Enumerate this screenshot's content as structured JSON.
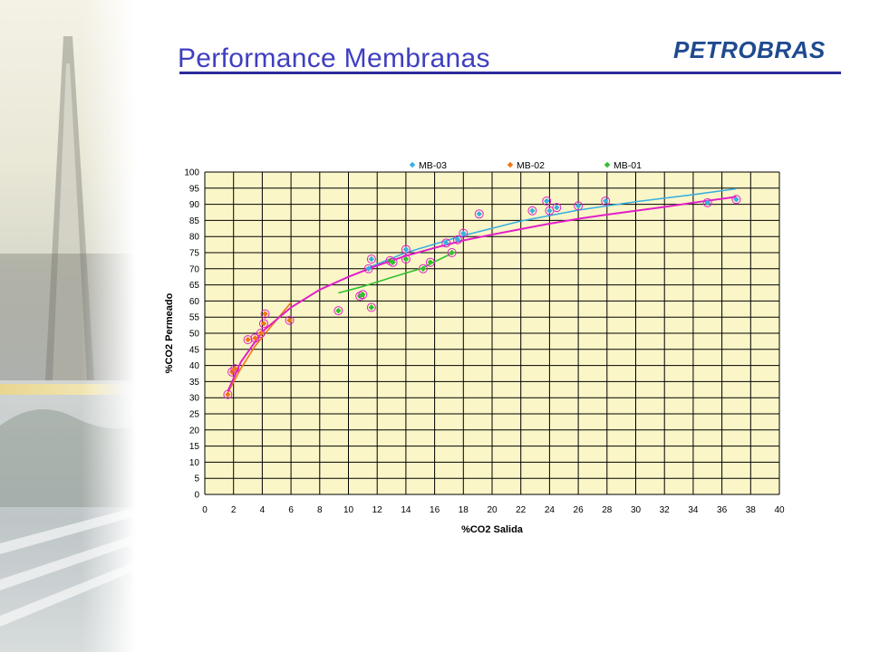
{
  "slide": {
    "title": "Performance Membranas",
    "logo": "PETROBRAS"
  },
  "colors": {
    "title": "#3f3fc0",
    "rule": "#2b2b9a",
    "logo": "#1f4a8f",
    "plot_background": "#fbf6c8",
    "grid": "#000000",
    "MB-03": "#3ab0e0",
    "MB-02": "#f07818",
    "MB-01": "#30c030",
    "fit_all": "#e020c8"
  },
  "chart_data": {
    "type": "scatter",
    "xlabel": "%CO2 Salida",
    "ylabel": "%CO2 Permeado",
    "xlim": [
      0,
      40
    ],
    "ylim": [
      0,
      100
    ],
    "xticks": [
      "0",
      "2",
      "4",
      "6",
      "8",
      "10",
      "12",
      "14",
      "16",
      "18",
      "20",
      "22",
      "24",
      "26",
      "28",
      "30",
      "32",
      "34",
      "36",
      "38",
      "40"
    ],
    "yticks": [
      "0",
      "5",
      "10",
      "15",
      "20",
      "25",
      "30",
      "35",
      "40",
      "45",
      "50",
      "55",
      "60",
      "65",
      "70",
      "75",
      "80",
      "85",
      "90",
      "95",
      "100"
    ],
    "grid": true,
    "legend": "top",
    "legend_entries": [
      "MB-03",
      "MB-02",
      "MB-01"
    ],
    "series": [
      {
        "name": "MB-03",
        "color": "#3ab0e0",
        "points": [
          [
            11.4,
            70
          ],
          [
            11.6,
            73
          ],
          [
            14,
            76
          ],
          [
            16.8,
            78
          ],
          [
            17.6,
            79
          ],
          [
            18,
            81
          ],
          [
            19.1,
            87
          ],
          [
            22.8,
            88
          ],
          [
            23.8,
            91
          ],
          [
            24,
            88
          ],
          [
            24.5,
            89
          ],
          [
            26,
            89.5
          ],
          [
            27.9,
            91
          ],
          [
            35,
            90.5
          ],
          [
            37,
            91.5
          ]
        ],
        "trend": [
          [
            11.2,
            70
          ],
          [
            14,
            75
          ],
          [
            18,
            80.3
          ],
          [
            22,
            84.8
          ],
          [
            26,
            88.2
          ],
          [
            30,
            90.8
          ],
          [
            34,
            93
          ],
          [
            37,
            94.8
          ]
        ]
      },
      {
        "name": "MB-02",
        "color": "#f07818",
        "points": [
          [
            1.6,
            31
          ],
          [
            1.9,
            38
          ],
          [
            2.1,
            39
          ],
          [
            3,
            48
          ],
          [
            3.5,
            48.5
          ],
          [
            3.9,
            50
          ],
          [
            4.1,
            53
          ],
          [
            4.2,
            56
          ],
          [
            5.9,
            54
          ]
        ],
        "trend": [
          [
            1.6,
            31.5
          ],
          [
            2.5,
            39
          ],
          [
            3.5,
            46
          ],
          [
            4.5,
            51.5
          ],
          [
            6,
            59.5
          ]
        ]
      },
      {
        "name": "MB-01",
        "color": "#30c030",
        "points": [
          [
            9.3,
            57
          ],
          [
            10.8,
            61.5
          ],
          [
            11,
            62
          ],
          [
            11.6,
            58
          ],
          [
            12.9,
            72.5
          ],
          [
            13.1,
            72
          ],
          [
            14,
            73
          ],
          [
            15.2,
            70
          ],
          [
            15.7,
            72
          ],
          [
            17.2,
            75
          ]
        ],
        "trend": [
          [
            9.3,
            62.5
          ],
          [
            11,
            64.5
          ],
          [
            13,
            67.3
          ],
          [
            15,
            70
          ],
          [
            17.3,
            75
          ]
        ]
      }
    ],
    "overall_trend": [
      [
        1.6,
        32
      ],
      [
        2.5,
        41
      ],
      [
        4,
        50.5
      ],
      [
        6,
        58
      ],
      [
        8,
        63.5
      ],
      [
        10,
        67.5
      ],
      [
        12,
        71
      ],
      [
        14,
        74
      ],
      [
        16,
        76.5
      ],
      [
        18,
        78.8
      ],
      [
        20,
        80.6
      ],
      [
        22,
        82.3
      ],
      [
        24,
        84
      ],
      [
        26,
        85.5
      ],
      [
        28,
        86.8
      ],
      [
        30,
        88
      ],
      [
        32,
        89.2
      ],
      [
        34,
        90.5
      ],
      [
        37,
        92.3
      ]
    ]
  }
}
